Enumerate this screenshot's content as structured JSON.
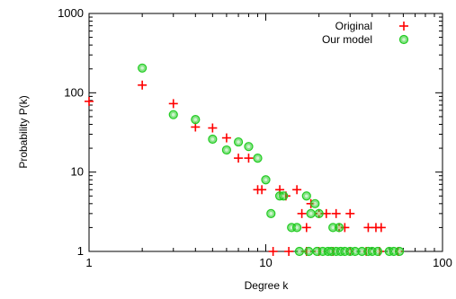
{
  "chart_data": {
    "type": "scatter",
    "title": "",
    "xlabel": "Degree k",
    "ylabel": "Probability P(k)",
    "xscale": "log",
    "yscale": "log",
    "xlim": [
      1,
      100
    ],
    "ylim": [
      1,
      1000
    ],
    "x_ticks": [
      "1",
      "10",
      "100"
    ],
    "y_ticks": [
      "1",
      "10",
      "100",
      "1000"
    ],
    "grid": false,
    "legend_position": "top-right",
    "series": [
      {
        "name": "Original",
        "marker": "plus",
        "color": "#ff0000",
        "points": [
          [
            1,
            78
          ],
          [
            2,
            125
          ],
          [
            3,
            73
          ],
          [
            4,
            37
          ],
          [
            5,
            36
          ],
          [
            6,
            27
          ],
          [
            7,
            15
          ],
          [
            8,
            15
          ],
          [
            9,
            6
          ],
          [
            9.5,
            6
          ],
          [
            12,
            6
          ],
          [
            13,
            5
          ],
          [
            15,
            6
          ],
          [
            16,
            3
          ],
          [
            17,
            2
          ],
          [
            18,
            4
          ],
          [
            20,
            3
          ],
          [
            22,
            3
          ],
          [
            25,
            3
          ],
          [
            26,
            2
          ],
          [
            28,
            2
          ],
          [
            30,
            3
          ],
          [
            38,
            2
          ],
          [
            42,
            2
          ],
          [
            45,
            2
          ],
          [
            11,
            1
          ],
          [
            13.5,
            1
          ],
          [
            17,
            1
          ],
          [
            20,
            1
          ],
          [
            24,
            1
          ],
          [
            30,
            1
          ],
          [
            37,
            1
          ],
          [
            44,
            1
          ],
          [
            56,
            1
          ]
        ]
      },
      {
        "name": "Our model",
        "marker": "circle",
        "color": "#22cc22",
        "points": [
          [
            2,
            205
          ],
          [
            3,
            53
          ],
          [
            4,
            46
          ],
          [
            5,
            26
          ],
          [
            6,
            19
          ],
          [
            7,
            24
          ],
          [
            8,
            21
          ],
          [
            9,
            15
          ],
          [
            10,
            8
          ],
          [
            10.7,
            3
          ],
          [
            12,
            5
          ],
          [
            12.6,
            5
          ],
          [
            14,
            2
          ],
          [
            15,
            2
          ],
          [
            17,
            5
          ],
          [
            18,
            3
          ],
          [
            19,
            4
          ],
          [
            20,
            3
          ],
          [
            24,
            2
          ],
          [
            26,
            2
          ],
          [
            15.5,
            1
          ],
          [
            17.5,
            1
          ],
          [
            19.5,
            1
          ],
          [
            21,
            1
          ],
          [
            22.5,
            1
          ],
          [
            23.5,
            1
          ],
          [
            25,
            1
          ],
          [
            26.5,
            1
          ],
          [
            28,
            1
          ],
          [
            30,
            1
          ],
          [
            32,
            1
          ],
          [
            35,
            1
          ],
          [
            38,
            1
          ],
          [
            40,
            1
          ],
          [
            43,
            1
          ],
          [
            50,
            1
          ],
          [
            53,
            1
          ],
          [
            57,
            1
          ]
        ]
      }
    ]
  }
}
